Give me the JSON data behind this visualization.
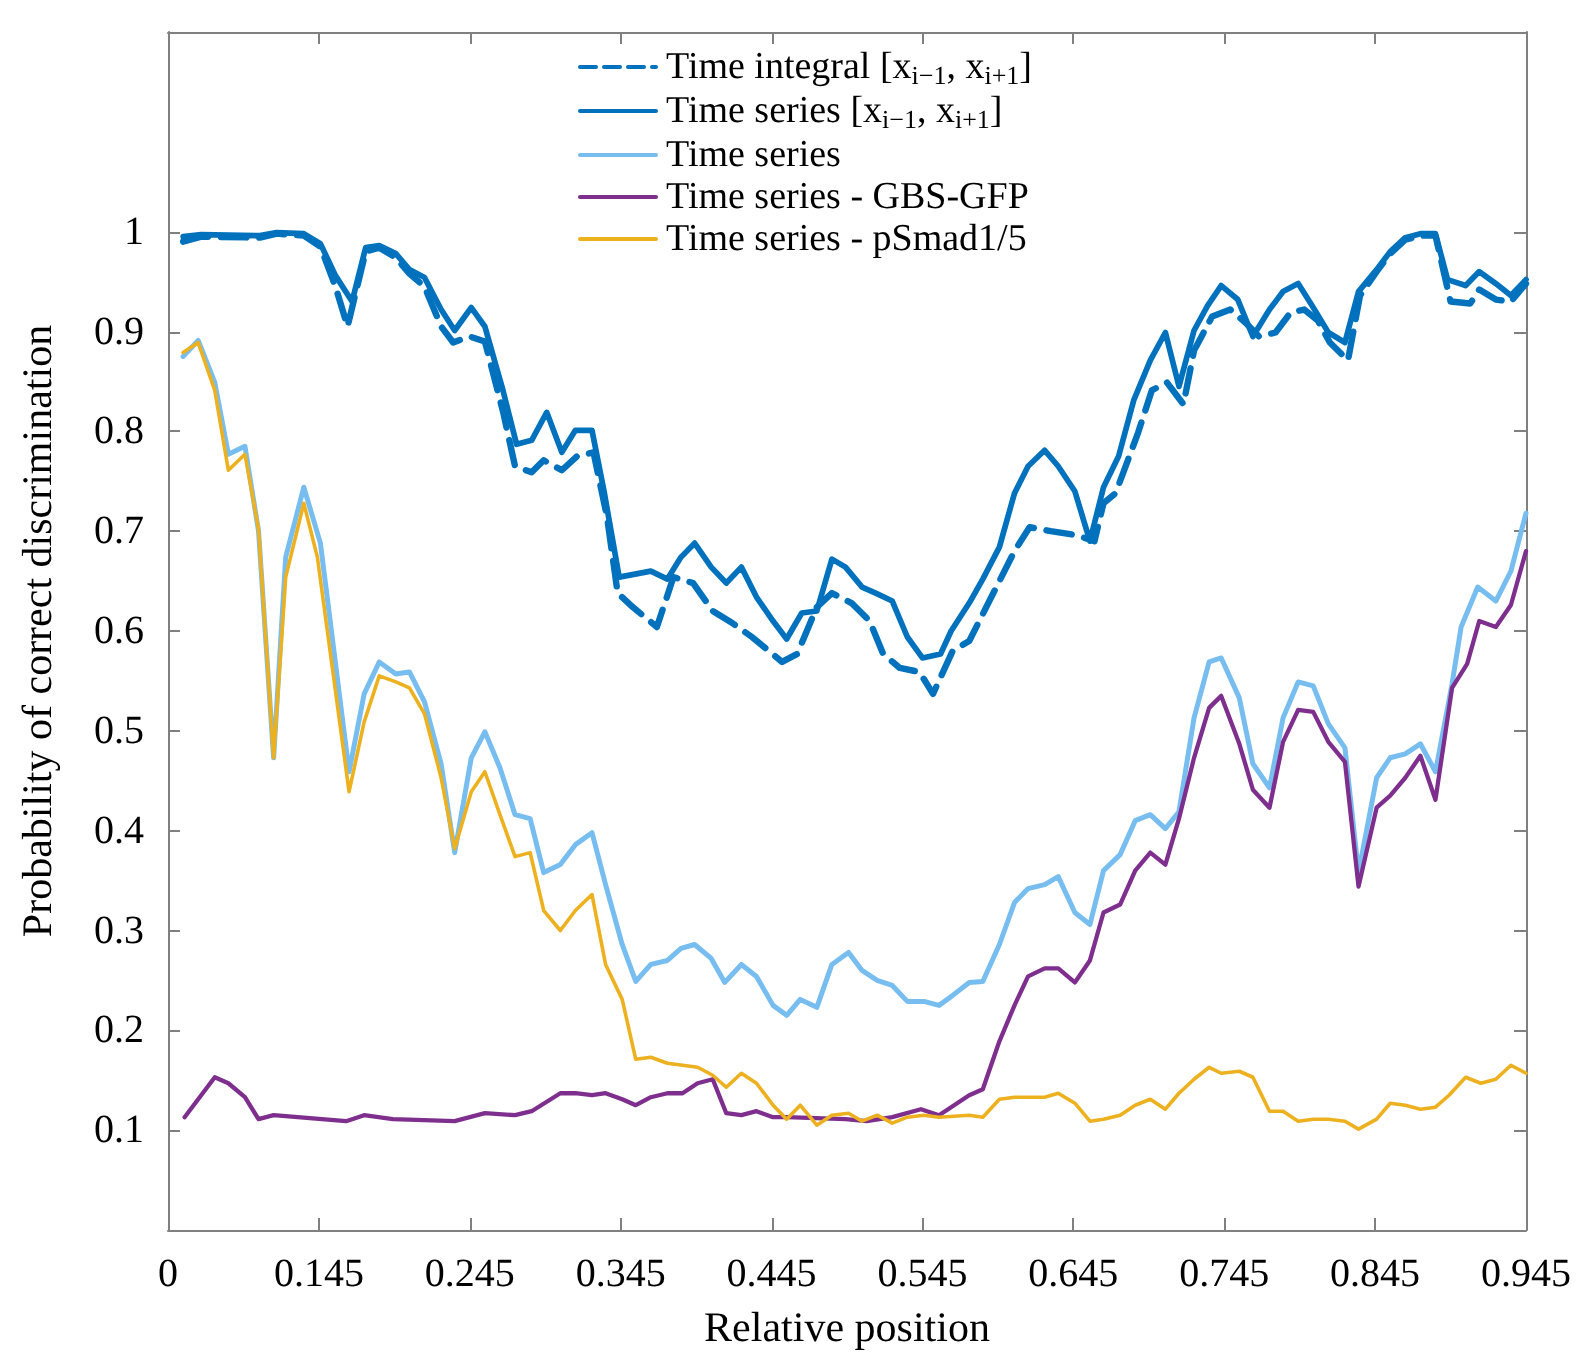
{
  "chart_data": {
    "type": "line",
    "xlabel": "Relative position",
    "ylabel": "Probability of correct discrimination",
    "xlim": [
      0.045,
      0.945
    ],
    "xticks": [
      {
        "value": 0.045,
        "label": "0"
      },
      0.145,
      0.245,
      0.345,
      0.445,
      0.545,
      0.645,
      0.745,
      0.845,
      0.945
    ],
    "ylim": [
      0,
      1.2
    ],
    "yticks": [
      0.1,
      0.2,
      0.3,
      0.4,
      0.5,
      0.6,
      0.7,
      0.8,
      0.9,
      1
    ],
    "grid": false,
    "legend": "top",
    "marker": "none",
    "series": [
      {
        "name": "Time integral [x$_{i−1}$, x$_{i+1}$]",
        "color": "#0072bd",
        "line_style": "dashed",
        "x": [
          0.055,
          0.067,
          0.106,
          0.117,
          0.135,
          0.146,
          0.156,
          0.164,
          0.176,
          0.185,
          0.196,
          0.205,
          0.215,
          0.226,
          0.234,
          0.245,
          0.255,
          0.267,
          0.275,
          0.286,
          0.294,
          0.306,
          0.316,
          0.327,
          0.336,
          0.343,
          0.353,
          0.369,
          0.38,
          0.393,
          0.406,
          0.419,
          0.432,
          0.452,
          0.462,
          0.475,
          0.485,
          0.498,
          0.51,
          0.519,
          0.53,
          0.543,
          0.552,
          0.565,
          0.576,
          0.596,
          0.606,
          0.616,
          0.63,
          0.647,
          0.659,
          0.665,
          0.673,
          0.688,
          0.697,
          0.707,
          0.718,
          0.725,
          0.737,
          0.749,
          0.759,
          0.768,
          0.779,
          0.789,
          0.798,
          0.807,
          0.815,
          0.827,
          0.835,
          0.846,
          0.855,
          0.865,
          0.875,
          0.885,
          0.895,
          0.908,
          0.914,
          0.925,
          0.935,
          0.945
        ],
        "values": [
          0.99,
          0.995,
          0.994,
          0.998,
          0.996,
          0.985,
          0.945,
          0.905,
          0.98,
          0.984,
          0.974,
          0.958,
          0.945,
          0.905,
          0.889,
          0.895,
          0.89,
          0.82,
          0.765,
          0.759,
          0.771,
          0.761,
          0.775,
          0.779,
          0.714,
          0.638,
          0.624,
          0.604,
          0.654,
          0.648,
          0.62,
          0.608,
          0.594,
          0.569,
          0.577,
          0.624,
          0.638,
          0.628,
          0.61,
          0.577,
          0.563,
          0.559,
          0.537,
          0.58,
          0.59,
          0.65,
          0.68,
          0.704,
          0.7,
          0.696,
          0.69,
          0.728,
          0.738,
          0.799,
          0.841,
          0.849,
          0.827,
          0.881,
          0.915,
          0.922,
          0.909,
          0.895,
          0.899,
          0.919,
          0.922,
          0.911,
          0.889,
          0.871,
          0.936,
          0.96,
          0.978,
          0.992,
          0.996,
          0.996,
          0.93,
          0.928,
          0.942,
          0.932,
          0.93,
          0.948
        ]
      },
      {
        "name": "Time series [x$_{i−1}$, x$_{i+1}$]",
        "color": "#0072bd",
        "line_style": "solid",
        "x": [
          0.055,
          0.067,
          0.106,
          0.117,
          0.135,
          0.146,
          0.156,
          0.167,
          0.176,
          0.185,
          0.196,
          0.205,
          0.215,
          0.226,
          0.235,
          0.246,
          0.255,
          0.267,
          0.276,
          0.286,
          0.296,
          0.306,
          0.315,
          0.326,
          0.334,
          0.344,
          0.365,
          0.376,
          0.385,
          0.394,
          0.405,
          0.415,
          0.425,
          0.435,
          0.446,
          0.455,
          0.465,
          0.475,
          0.485,
          0.494,
          0.505,
          0.514,
          0.525,
          0.535,
          0.545,
          0.557,
          0.564,
          0.576,
          0.585,
          0.596,
          0.606,
          0.615,
          0.626,
          0.635,
          0.646,
          0.656,
          0.665,
          0.675,
          0.685,
          0.696,
          0.706,
          0.715,
          0.725,
          0.734,
          0.743,
          0.754,
          0.764,
          0.775,
          0.784,
          0.794,
          0.804,
          0.814,
          0.825,
          0.834,
          0.846,
          0.855,
          0.865,
          0.875,
          0.885,
          0.893,
          0.905,
          0.914,
          0.925,
          0.935,
          0.945
        ],
        "values": [
          0.995,
          0.997,
          0.996,
          0.999,
          0.998,
          0.988,
          0.956,
          0.93,
          0.984,
          0.986,
          0.978,
          0.962,
          0.954,
          0.922,
          0.901,
          0.924,
          0.905,
          0.841,
          0.787,
          0.791,
          0.819,
          0.779,
          0.801,
          0.801,
          0.74,
          0.654,
          0.66,
          0.652,
          0.674,
          0.688,
          0.664,
          0.648,
          0.664,
          0.634,
          0.61,
          0.592,
          0.618,
          0.62,
          0.672,
          0.664,
          0.644,
          0.638,
          0.63,
          0.594,
          0.573,
          0.577,
          0.6,
          0.628,
          0.652,
          0.684,
          0.738,
          0.765,
          0.781,
          0.765,
          0.74,
          0.69,
          0.744,
          0.775,
          0.831,
          0.871,
          0.899,
          0.845,
          0.901,
          0.926,
          0.946,
          0.932,
          0.895,
          0.922,
          0.94,
          0.948,
          0.924,
          0.899,
          0.889,
          0.94,
          0.962,
          0.98,
          0.994,
          0.998,
          0.998,
          0.952,
          0.946,
          0.96,
          0.948,
          0.936,
          0.952
        ]
      },
      {
        "name": "Time series",
        "color": "#77bdf0",
        "line_style": "solid",
        "x": [
          0.055,
          0.065,
          0.076,
          0.085,
          0.096,
          0.105,
          0.115,
          0.123,
          0.135,
          0.146,
          0.165,
          0.175,
          0.185,
          0.196,
          0.205,
          0.215,
          0.226,
          0.235,
          0.246,
          0.255,
          0.265,
          0.275,
          0.285,
          0.294,
          0.305,
          0.315,
          0.326,
          0.335,
          0.346,
          0.355,
          0.365,
          0.376,
          0.385,
          0.394,
          0.405,
          0.414,
          0.425,
          0.435,
          0.446,
          0.455,
          0.464,
          0.475,
          0.485,
          0.496,
          0.505,
          0.515,
          0.525,
          0.535,
          0.546,
          0.556,
          0.565,
          0.576,
          0.585,
          0.596,
          0.606,
          0.615,
          0.626,
          0.635,
          0.646,
          0.656,
          0.665,
          0.676,
          0.686,
          0.696,
          0.706,
          0.715,
          0.725,
          0.735,
          0.743,
          0.755,
          0.764,
          0.775,
          0.784,
          0.794,
          0.804,
          0.814,
          0.825,
          0.834,
          0.846,
          0.855,
          0.865,
          0.875,
          0.885,
          0.896,
          0.902,
          0.913,
          0.925,
          0.935,
          0.945
        ],
        "values": [
          0.875,
          0.891,
          0.849,
          0.777,
          0.785,
          0.7,
          0.473,
          0.674,
          0.744,
          0.688,
          0.459,
          0.537,
          0.569,
          0.557,
          0.559,
          0.529,
          0.467,
          0.378,
          0.473,
          0.499,
          0.463,
          0.416,
          0.412,
          0.358,
          0.366,
          0.386,
          0.398,
          0.346,
          0.286,
          0.249,
          0.266,
          0.27,
          0.282,
          0.286,
          0.272,
          0.248,
          0.266,
          0.254,
          0.225,
          0.215,
          0.231,
          0.223,
          0.266,
          0.278,
          0.26,
          0.25,
          0.245,
          0.229,
          0.229,
          0.225,
          0.235,
          0.248,
          0.249,
          0.286,
          0.328,
          0.342,
          0.346,
          0.354,
          0.318,
          0.306,
          0.36,
          0.376,
          0.41,
          0.416,
          0.402,
          0.419,
          0.513,
          0.569,
          0.573,
          0.533,
          0.467,
          0.443,
          0.513,
          0.549,
          0.545,
          0.507,
          0.483,
          0.358,
          0.453,
          0.473,
          0.477,
          0.487,
          0.459,
          0.547,
          0.604,
          0.644,
          0.63,
          0.66,
          0.718
        ]
      },
      {
        "name": "Time series - GBS-GFP",
        "color": "#7e2f8e",
        "line_style": "solid",
        "x": [
          0.056,
          0.065,
          0.076,
          0.085,
          0.096,
          0.105,
          0.115,
          0.163,
          0.175,
          0.194,
          0.235,
          0.255,
          0.275,
          0.286,
          0.305,
          0.315,
          0.326,
          0.335,
          0.346,
          0.355,
          0.365,
          0.376,
          0.386,
          0.396,
          0.406,
          0.415,
          0.425,
          0.435,
          0.446,
          0.455,
          0.494,
          0.508,
          0.525,
          0.544,
          0.556,
          0.576,
          0.585,
          0.596,
          0.606,
          0.615,
          0.626,
          0.635,
          0.646,
          0.656,
          0.665,
          0.676,
          0.686,
          0.696,
          0.706,
          0.715,
          0.725,
          0.735,
          0.743,
          0.755,
          0.764,
          0.775,
          0.784,
          0.794,
          0.804,
          0.814,
          0.825,
          0.834,
          0.846,
          0.855,
          0.865,
          0.875,
          0.885,
          0.896,
          0.906,
          0.914,
          0.925,
          0.935,
          0.945
        ],
        "values": [
          0.113,
          0.131,
          0.153,
          0.147,
          0.133,
          0.111,
          0.115,
          0.109,
          0.115,
          0.111,
          0.109,
          0.117,
          0.115,
          0.119,
          0.137,
          0.137,
          0.135,
          0.137,
          0.131,
          0.125,
          0.133,
          0.137,
          0.137,
          0.147,
          0.151,
          0.117,
          0.115,
          0.119,
          0.113,
          0.113,
          0.111,
          0.109,
          0.113,
          0.121,
          0.115,
          0.135,
          0.141,
          0.189,
          0.225,
          0.254,
          0.262,
          0.262,
          0.248,
          0.27,
          0.318,
          0.326,
          0.36,
          0.378,
          0.366,
          0.412,
          0.473,
          0.523,
          0.535,
          0.487,
          0.441,
          0.423,
          0.489,
          0.521,
          0.519,
          0.489,
          0.469,
          0.344,
          0.423,
          0.435,
          0.453,
          0.475,
          0.431,
          0.543,
          0.567,
          0.61,
          0.604,
          0.626,
          0.68
        ]
      },
      {
        "name": "Time series - pSmad1/5",
        "color": "#edb120",
        "line_style": "solid",
        "x": [
          0.055,
          0.065,
          0.076,
          0.085,
          0.096,
          0.105,
          0.115,
          0.123,
          0.135,
          0.144,
          0.165,
          0.175,
          0.185,
          0.196,
          0.205,
          0.215,
          0.226,
          0.235,
          0.246,
          0.255,
          0.265,
          0.275,
          0.285,
          0.294,
          0.305,
          0.315,
          0.326,
          0.335,
          0.346,
          0.355,
          0.365,
          0.376,
          0.396,
          0.406,
          0.415,
          0.425,
          0.435,
          0.446,
          0.455,
          0.464,
          0.475,
          0.485,
          0.496,
          0.505,
          0.515,
          0.525,
          0.535,
          0.546,
          0.556,
          0.576,
          0.585,
          0.596,
          0.606,
          0.615,
          0.626,
          0.635,
          0.646,
          0.656,
          0.665,
          0.676,
          0.686,
          0.696,
          0.706,
          0.715,
          0.725,
          0.735,
          0.743,
          0.755,
          0.764,
          0.775,
          0.784,
          0.794,
          0.804,
          0.814,
          0.825,
          0.834,
          0.846,
          0.855,
          0.865,
          0.875,
          0.885,
          0.894,
          0.905,
          0.915,
          0.925,
          0.935,
          0.945
        ],
        "values": [
          0.879,
          0.889,
          0.841,
          0.761,
          0.777,
          0.702,
          0.473,
          0.654,
          0.728,
          0.674,
          0.439,
          0.509,
          0.555,
          0.549,
          0.543,
          0.517,
          0.453,
          0.382,
          0.439,
          0.459,
          0.416,
          0.374,
          0.378,
          0.32,
          0.3,
          0.32,
          0.336,
          0.266,
          0.231,
          0.171,
          0.173,
          0.167,
          0.163,
          0.155,
          0.143,
          0.157,
          0.147,
          0.125,
          0.111,
          0.125,
          0.105,
          0.115,
          0.117,
          0.109,
          0.115,
          0.107,
          0.113,
          0.115,
          0.113,
          0.115,
          0.113,
          0.131,
          0.133,
          0.133,
          0.133,
          0.137,
          0.127,
          0.109,
          0.111,
          0.115,
          0.125,
          0.131,
          0.121,
          0.137,
          0.151,
          0.163,
          0.157,
          0.159,
          0.153,
          0.119,
          0.119,
          0.109,
          0.111,
          0.111,
          0.109,
          0.101,
          0.111,
          0.127,
          0.125,
          0.121,
          0.123,
          0.135,
          0.153,
          0.147,
          0.151,
          0.165,
          0.157
        ]
      }
    ]
  }
}
